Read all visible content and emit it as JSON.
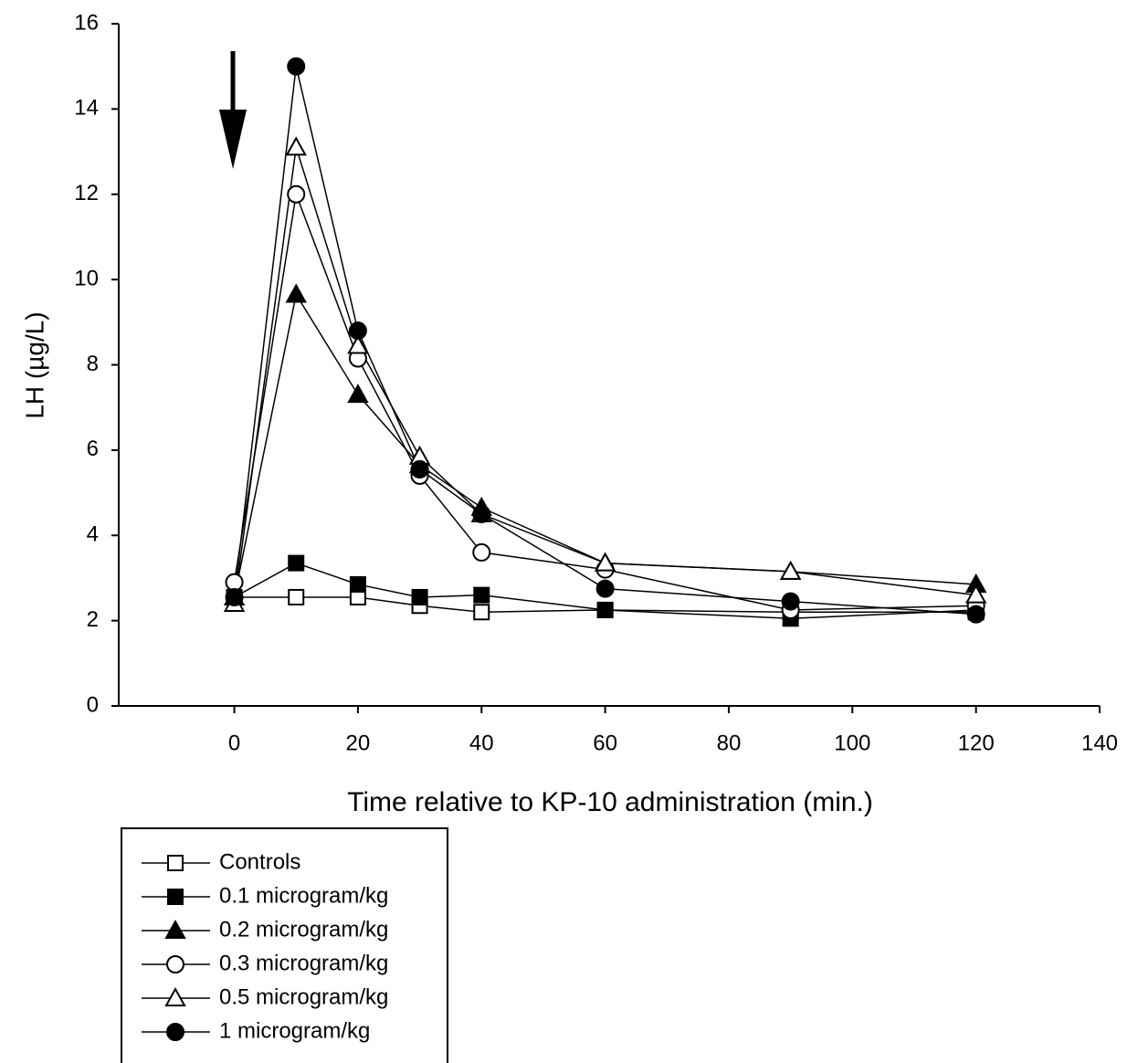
{
  "chart_data": {
    "type": "line",
    "x_label": "Time relative to KP-10 administration (min.)",
    "y_label": "LH  (µg/L)",
    "x": [
      0,
      10,
      20,
      30,
      40,
      60,
      90,
      120
    ],
    "xlim": [
      -18.7,
      140
    ],
    "xticks": [
      0,
      20,
      40,
      60,
      80,
      100,
      120,
      140
    ],
    "ylim": [
      0,
      16
    ],
    "yticks": [
      0,
      2,
      4,
      6,
      8,
      10,
      12,
      14,
      16
    ],
    "legend": "bottom-left",
    "series": [
      {
        "name": "Controls",
        "color": "#000000",
        "marker": "square",
        "marker_fill": "#ffffff",
        "values": [
          2.55,
          2.55,
          2.55,
          2.35,
          2.2,
          2.25,
          2.2,
          2.2
        ]
      },
      {
        "name": "0.1 microgram/kg",
        "color": "#000000",
        "marker": "square",
        "marker_fill": "#000000",
        "values": [
          2.55,
          3.35,
          2.85,
          2.55,
          2.6,
          2.25,
          2.05,
          2.25
        ]
      },
      {
        "name": "0.2 microgram/kg",
        "color": "#000000",
        "marker": "triangle",
        "marker_fill": "#000000",
        "values": [
          2.55,
          9.65,
          7.3,
          5.65,
          4.65,
          3.35,
          3.15,
          2.85
        ]
      },
      {
        "name": "0.3 microgram/kg",
        "color": "#000000",
        "marker": "circle",
        "marker_fill": "#ffffff",
        "values": [
          2.9,
          12.0,
          8.15,
          5.4,
          3.6,
          3.2,
          2.25,
          2.35
        ]
      },
      {
        "name": "0.5 microgram/kg",
        "color": "#000000",
        "marker": "triangle",
        "marker_fill": "#ffffff",
        "values": [
          2.4,
          13.1,
          8.45,
          5.85,
          4.5,
          3.35,
          3.15,
          2.6
        ]
      },
      {
        "name": "1 microgram/kg",
        "color": "#000000",
        "marker": "circle",
        "marker_fill": "#000000",
        "values": [
          2.55,
          15.0,
          8.8,
          5.55,
          4.5,
          2.75,
          2.45,
          2.15
        ]
      }
    ]
  }
}
